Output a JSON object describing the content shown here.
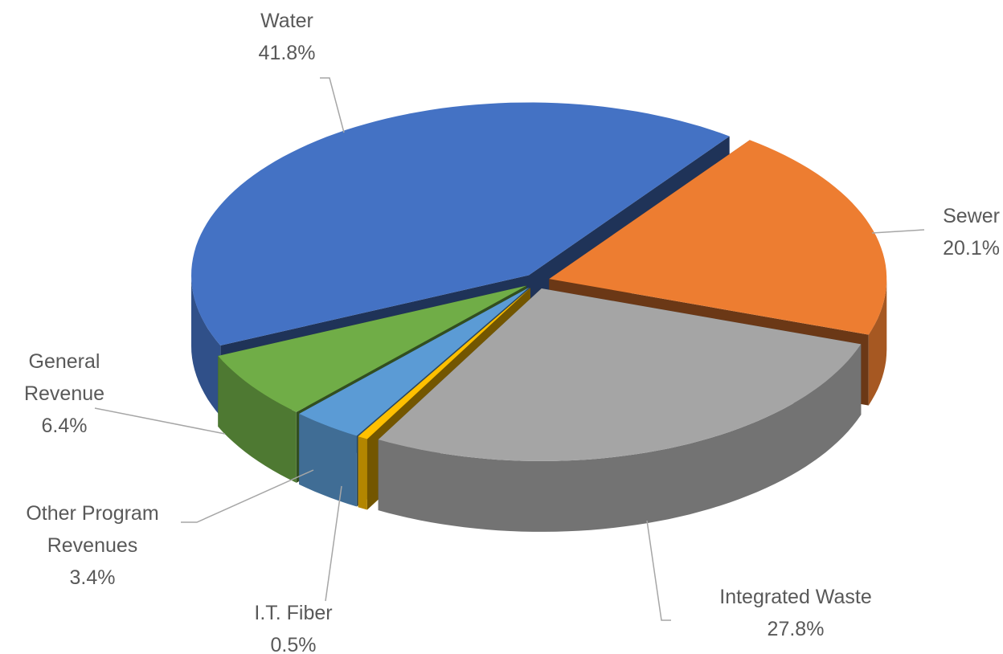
{
  "chart_data": {
    "type": "pie3d",
    "categories": [
      "Water",
      "Sewer",
      "Integrated Waste",
      "I.T. Fiber",
      "Other Program Revenues",
      "General Revenue"
    ],
    "values": [
      41.8,
      20.1,
      27.8,
      0.5,
      3.4,
      6.4
    ],
    "value_labels": [
      "41.8%",
      "20.1%",
      "27.8%",
      "0.5%",
      "3.4%",
      "6.4%"
    ],
    "colors": [
      "#4472c4",
      "#ed7d31",
      "#a5a5a5",
      "#ffc000",
      "#5b9bd5",
      "#70ad47"
    ]
  }
}
